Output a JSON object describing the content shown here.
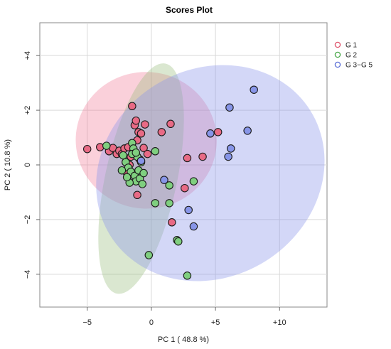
{
  "chart_data": {
    "type": "scatter",
    "title": "Scores Plot",
    "xlabel": "PC 1 ( 48.8 %)",
    "ylabel": "PC 2 ( 10.8 %)",
    "xlim": [
      -8.7,
      13.7
    ],
    "ylim": [
      -5.2,
      5.2
    ],
    "x_ticks": [
      -5,
      0,
      5,
      10
    ],
    "x_tick_labels": [
      "−5",
      "0",
      "+5",
      "+10"
    ],
    "y_ticks": [
      -4,
      -2,
      0,
      2,
      4
    ],
    "y_tick_labels": [
      "−4",
      "−2",
      "0",
      "+2",
      "+4"
    ],
    "grid": true,
    "legend_position": "top-right",
    "series": [
      {
        "name": "G 1",
        "color": "#df536b",
        "fill": "#e86a85",
        "ellipse_fill": "rgba(240,120,150,0.35)",
        "ellipse": {
          "cx": -0.4,
          "cy": 0.9,
          "rx": 5.5,
          "ry": 2.5,
          "angle": -4
        },
        "points": [
          [
            -5.0,
            0.58
          ],
          [
            -4.0,
            0.65
          ],
          [
            -3.3,
            0.5
          ],
          [
            -3.0,
            0.62
          ],
          [
            -2.7,
            0.4
          ],
          [
            -2.5,
            0.52
          ],
          [
            -2.3,
            0.4
          ],
          [
            -2.1,
            0.6
          ],
          [
            -1.8,
            0.65
          ],
          [
            -1.5,
            2.15
          ],
          [
            -1.3,
            1.45
          ],
          [
            -1.2,
            1.62
          ],
          [
            -1.1,
            0.9
          ],
          [
            -1.0,
            1.2
          ],
          [
            -0.8,
            1.15
          ],
          [
            -0.5,
            1.48
          ],
          [
            -1.6,
            0.3
          ],
          [
            -1.4,
            0.5
          ],
          [
            -0.6,
            0.62
          ],
          [
            -0.3,
            0.4
          ],
          [
            -1.9,
            -0.3
          ],
          [
            -1.1,
            -1.1
          ],
          [
            0.8,
            1.2
          ],
          [
            1.5,
            1.5
          ],
          [
            2.8,
            0.25
          ],
          [
            4.0,
            0.3
          ],
          [
            2.6,
            -0.85
          ],
          [
            1.6,
            -2.1
          ],
          [
            5.2,
            1.2
          ],
          [
            -2.0,
            0.1
          ],
          [
            -0.9,
            0.2
          ],
          [
            -1.7,
            0.0
          ]
        ]
      },
      {
        "name": "G 2",
        "color": "#4aa84a",
        "fill": "#7fcf7f",
        "ellipse_fill": "rgba(150,185,120,0.35)",
        "ellipse": {
          "cx": -0.8,
          "cy": -0.5,
          "rx": 2.8,
          "ry": 4.3,
          "angle": -12
        },
        "points": [
          [
            -3.5,
            0.7
          ],
          [
            -2.2,
            0.35
          ],
          [
            -2.0,
            0.1
          ],
          [
            -1.8,
            -0.1
          ],
          [
            -1.6,
            -0.25
          ],
          [
            -1.5,
            0.8
          ],
          [
            -1.4,
            0.6
          ],
          [
            -1.3,
            -0.4
          ],
          [
            -1.2,
            -0.6
          ],
          [
            -1.1,
            0.3
          ],
          [
            -1.0,
            -0.2
          ],
          [
            -0.9,
            -0.5
          ],
          [
            -0.8,
            0.1
          ],
          [
            -0.7,
            -0.7
          ],
          [
            -1.7,
            -0.65
          ],
          [
            -1.5,
            0.4
          ],
          [
            -0.6,
            -0.3
          ],
          [
            0.3,
            0.5
          ],
          [
            1.4,
            -0.75
          ],
          [
            3.3,
            -0.6
          ],
          [
            0.3,
            -1.4
          ],
          [
            1.4,
            -1.4
          ],
          [
            2.0,
            -2.75
          ],
          [
            2.1,
            -2.8
          ],
          [
            -0.2,
            -3.3
          ],
          [
            2.8,
            -4.05
          ],
          [
            -1.2,
            0.45
          ],
          [
            -2.3,
            -0.2
          ],
          [
            -1.9,
            -0.45
          ]
        ]
      },
      {
        "name": "G 3−G 5",
        "color": "#5b6fd6",
        "fill": "#8795e8",
        "ellipse_fill": "rgba(140,150,235,0.38)",
        "ellipse": {
          "cx": 4.6,
          "cy": -0.3,
          "rx": 9.2,
          "ry": 3.8,
          "angle": 32
        },
        "points": [
          [
            8.0,
            2.75
          ],
          [
            6.1,
            2.1
          ],
          [
            4.6,
            1.15
          ],
          [
            7.5,
            1.25
          ],
          [
            6.2,
            0.6
          ],
          [
            6.0,
            0.3
          ],
          [
            1.0,
            -0.55
          ],
          [
            2.9,
            -1.65
          ],
          [
            3.3,
            -2.25
          ],
          [
            -0.8,
            0.15
          ]
        ]
      }
    ]
  }
}
